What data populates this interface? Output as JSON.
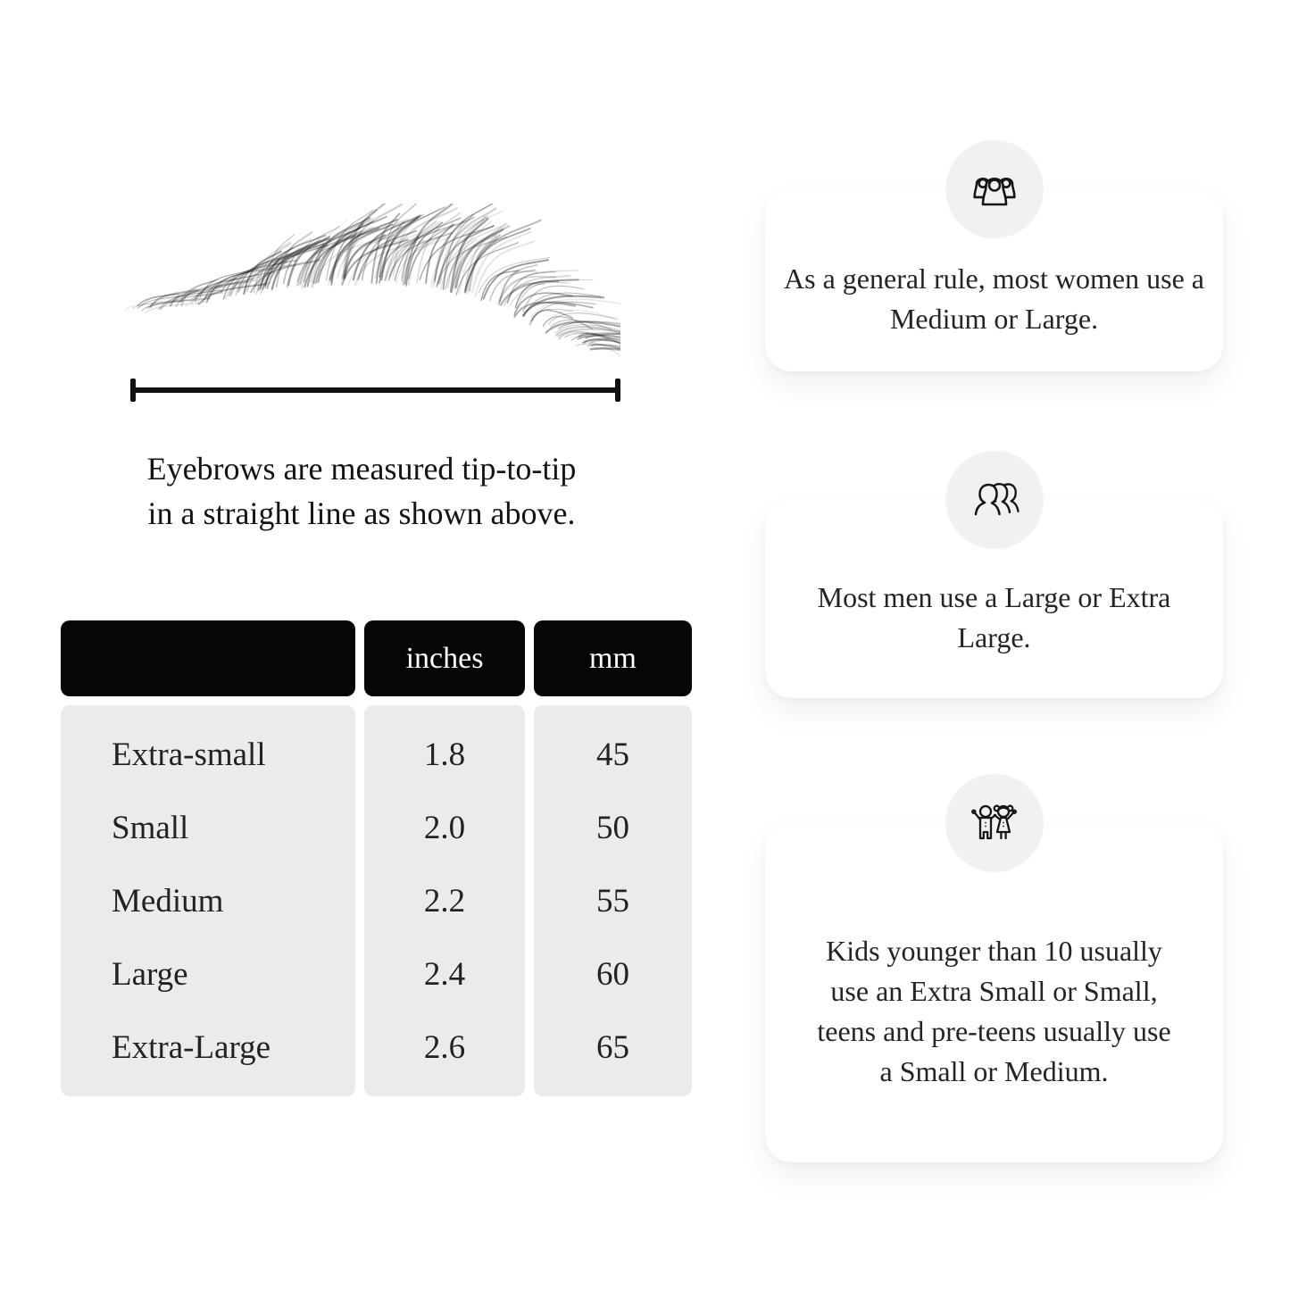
{
  "diagram": {
    "caption_lines": [
      "Eyebrows are measured tip-to-tip",
      "in a straight line as shown above."
    ],
    "caption_text": "Eyebrows are measured tip-to-tip in a straight line as shown above."
  },
  "size_table": {
    "columns": [
      "",
      "inches",
      "mm"
    ],
    "rows": [
      [
        "Extra-small",
        "1.8",
        "45"
      ],
      [
        "Small",
        "2.0",
        "50"
      ],
      [
        "Medium",
        "2.2",
        "55"
      ],
      [
        "Large",
        "2.4",
        "60"
      ],
      [
        "Extra-Large",
        "2.6",
        "65"
      ]
    ]
  },
  "cards": [
    {
      "icon": "women-group-icon",
      "text": "As a general rule, most women use a Medium or Large."
    },
    {
      "icon": "men-group-icon",
      "text": "Most men use a Large or Extra Large."
    },
    {
      "icon": "kids-icon",
      "text": "Kids younger than 10 usually use an Extra Small or Small, teens and pre-teens usually use a Small or Medium."
    }
  ],
  "colors": {
    "table_header_bg": "#060606",
    "table_header_text": "#ffffff",
    "table_body_bg": "#ebebeb",
    "card_bg": "#ffffff",
    "icon_circle_bg": "#f2f1ef",
    "line": "#111111",
    "text": "#1c1c1c"
  }
}
